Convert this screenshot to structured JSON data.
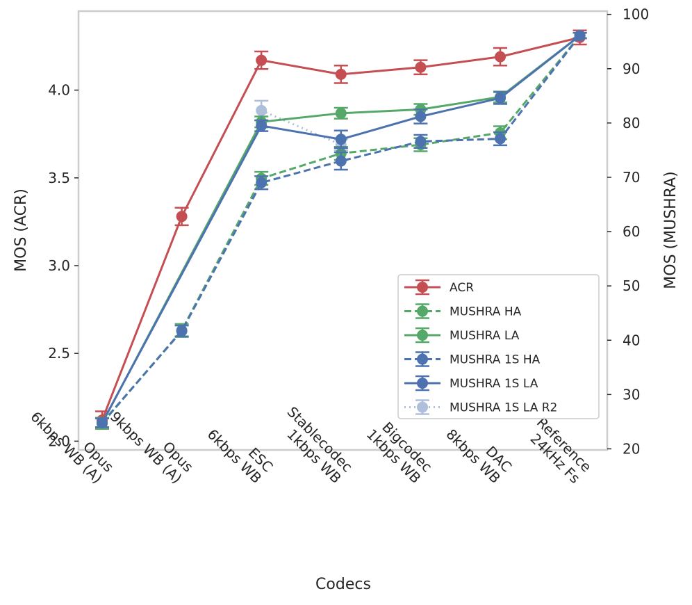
{
  "chart_data": {
    "type": "line",
    "categories": [
      [
        "Opus",
        "6kbps WB (A)"
      ],
      [
        "Opus",
        "9kbps WB (A)"
      ],
      [
        "ESC",
        "6kbps WB"
      ],
      [
        "Stablecodec",
        "1kbps WB"
      ],
      [
        "Bigcodec",
        "1kbps WB"
      ],
      [
        "DAC",
        "8kbps WB"
      ],
      [
        "Reference",
        "24kHz Fs"
      ]
    ],
    "xlabel": "Codecs",
    "ylabel_left": "MOS (ACR)",
    "ylabel_right": "MOS (MUSHRA)",
    "ylim_left": [
      1.95,
      4.45
    ],
    "ylim_right": [
      19.8,
      100.6
    ],
    "yticks_left": [
      "2.0",
      "2.5",
      "3.0",
      "3.5",
      "4.0"
    ],
    "yticks_right": [
      "20",
      "30",
      "40",
      "50",
      "60",
      "70",
      "80",
      "90",
      "100"
    ],
    "legend_position": "lower-right",
    "series": [
      {
        "name": "ACR",
        "axis": "left",
        "color": "#c44e52",
        "linestyle": "solid",
        "opacity": 1,
        "values": [
          2.12,
          3.28,
          4.17,
          4.09,
          4.13,
          4.19,
          4.3
        ],
        "errors": [
          0.05,
          0.05,
          0.05,
          0.05,
          0.04,
          0.05,
          0.04
        ]
      },
      {
        "name": "MUSHRA HA",
        "axis": "right",
        "color": "#55a868",
        "linestyle": "dashed",
        "opacity": 1,
        "values": [
          24.7,
          41.8,
          69.8,
          74.4,
          76.0,
          78.2,
          96.1
        ],
        "errors": [
          1.0,
          1.2,
          1.2,
          1.2,
          1.2,
          1.2,
          0.5
        ]
      },
      {
        "name": "MUSHRA LA",
        "axis": "right",
        "color": "#55a868",
        "linestyle": "solid",
        "opacity": 1,
        "values": [
          24.7,
          null,
          80.2,
          81.8,
          82.5,
          84.8,
          96.1
        ],
        "errors": [
          1.0,
          null,
          1.0,
          1.0,
          1.0,
          1.0,
          0.5
        ]
      },
      {
        "name": "MUSHRA 1S HA",
        "axis": "right",
        "color": "#4c72b0",
        "linestyle": "dashed",
        "opacity": 1,
        "values": [
          24.8,
          41.7,
          69.0,
          73.0,
          76.6,
          77.1,
          96.1
        ],
        "errors": [
          0.8,
          1.0,
          1.2,
          1.6,
          1.2,
          1.2,
          0.5
        ]
      },
      {
        "name": "MUSHRA 1S LA",
        "axis": "right",
        "color": "#4c72b0",
        "linestyle": "solid",
        "opacity": 1,
        "values": [
          24.8,
          null,
          79.5,
          77.0,
          81.2,
          84.6,
          96.1
        ],
        "errors": [
          0.8,
          null,
          1.0,
          1.6,
          1.3,
          1.1,
          0.5
        ]
      },
      {
        "name": "MUSHRA 1S LA R2",
        "axis": "right",
        "color": "#4c72b0",
        "linestyle": "dotted",
        "opacity": 0.45,
        "values": [
          null,
          null,
          82.3,
          76.0,
          null,
          null,
          null
        ],
        "errors": [
          null,
          null,
          1.8,
          1.0,
          null,
          null,
          null
        ]
      }
    ]
  }
}
